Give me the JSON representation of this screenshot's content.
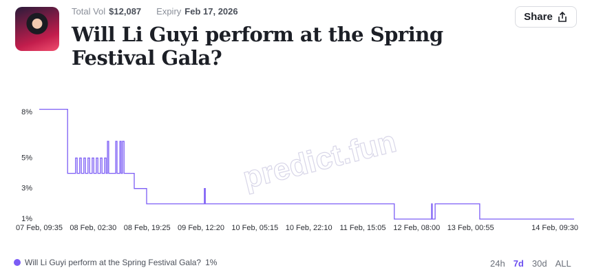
{
  "header": {
    "total_vol_label": "Total Vol",
    "total_vol": "$12,087",
    "expiry_label": "Expiry",
    "expiry": "Feb 17, 2026",
    "title": "Will Li Guyi perform at the Spring Festival Gala?",
    "share": "Share"
  },
  "watermark": "predict.fun",
  "chart_data": {
    "type": "line",
    "step": true,
    "x": [
      0,
      8.9,
      8.9,
      11.4,
      11.4,
      11.9,
      11.9,
      12.7,
      12.7,
      13.2,
      13.2,
      14.0,
      14.0,
      14.5,
      14.5,
      15.3,
      15.3,
      15.8,
      15.8,
      16.6,
      16.6,
      17.1,
      17.1,
      17.9,
      17.9,
      18.4,
      18.4,
      19.2,
      19.2,
      19.7,
      19.7,
      20.5,
      20.5,
      21.0,
      21.0,
      21.4,
      21.4,
      21.8,
      21.8,
      24.0,
      24.0,
      24.4,
      24.4,
      25.3,
      25.3,
      25.7,
      25.7,
      26.1,
      26.1,
      26.6,
      26.6,
      29.8,
      29.8,
      33.7,
      33.7,
      51.8,
      51.8,
      52.1,
      52.1,
      111.4,
      111.4,
      123.1,
      123.1,
      123.3,
      123.3,
      124.2,
      124.2,
      138.2,
      138.2,
      167.8
    ],
    "series": [
      {
        "name": "Will Li Guyi perform at the Spring Festival Gala?",
        "color": "#7b5cf5",
        "values": [
          8.2,
          8.2,
          4,
          4,
          5,
          5,
          4,
          4,
          5,
          5,
          4,
          4,
          5,
          5,
          4,
          4,
          5,
          5,
          4,
          4,
          5,
          5,
          4,
          4,
          5,
          5,
          4,
          4,
          5,
          5,
          4,
          4,
          5,
          5,
          4,
          4,
          6.1,
          6.1,
          4,
          4,
          6.1,
          6.1,
          4,
          4,
          6.1,
          6.1,
          4,
          4,
          6.1,
          6.1,
          4,
          4,
          3,
          3,
          2,
          2,
          3,
          3,
          2,
          2,
          1,
          1,
          2,
          2,
          1,
          1,
          2,
          2,
          1,
          1
        ],
        "current_label": "1%"
      }
    ],
    "xlim": [
      0,
      167.8
    ],
    "xticks": [
      {
        "value": 0,
        "label": "07 Feb, 09:35"
      },
      {
        "value": 16.92,
        "label": "08 Feb, 02:30"
      },
      {
        "value": 33.83,
        "label": "08 Feb, 19:25"
      },
      {
        "value": 50.75,
        "label": "09 Feb, 12:20"
      },
      {
        "value": 67.67,
        "label": "10 Feb, 05:15"
      },
      {
        "value": 84.58,
        "label": "10 Feb, 22:10"
      },
      {
        "value": 101.5,
        "label": "11 Feb, 15:05"
      },
      {
        "value": 118.42,
        "label": "12 Feb, 08:00"
      },
      {
        "value": 135.33,
        "label": "13 Feb, 00:55"
      },
      {
        "value": 167.92,
        "label": "14 Feb, 09:30"
      }
    ],
    "ylim": [
      1,
      8
    ],
    "yticks": [
      {
        "value": 1,
        "label": "1%"
      },
      {
        "value": 3,
        "label": "3%"
      },
      {
        "value": 5,
        "label": "5%"
      },
      {
        "value": 8,
        "label": "8%"
      }
    ]
  },
  "timeframes": {
    "options": [
      "24h",
      "7d",
      "30d",
      "ALL"
    ],
    "selected": 1
  }
}
